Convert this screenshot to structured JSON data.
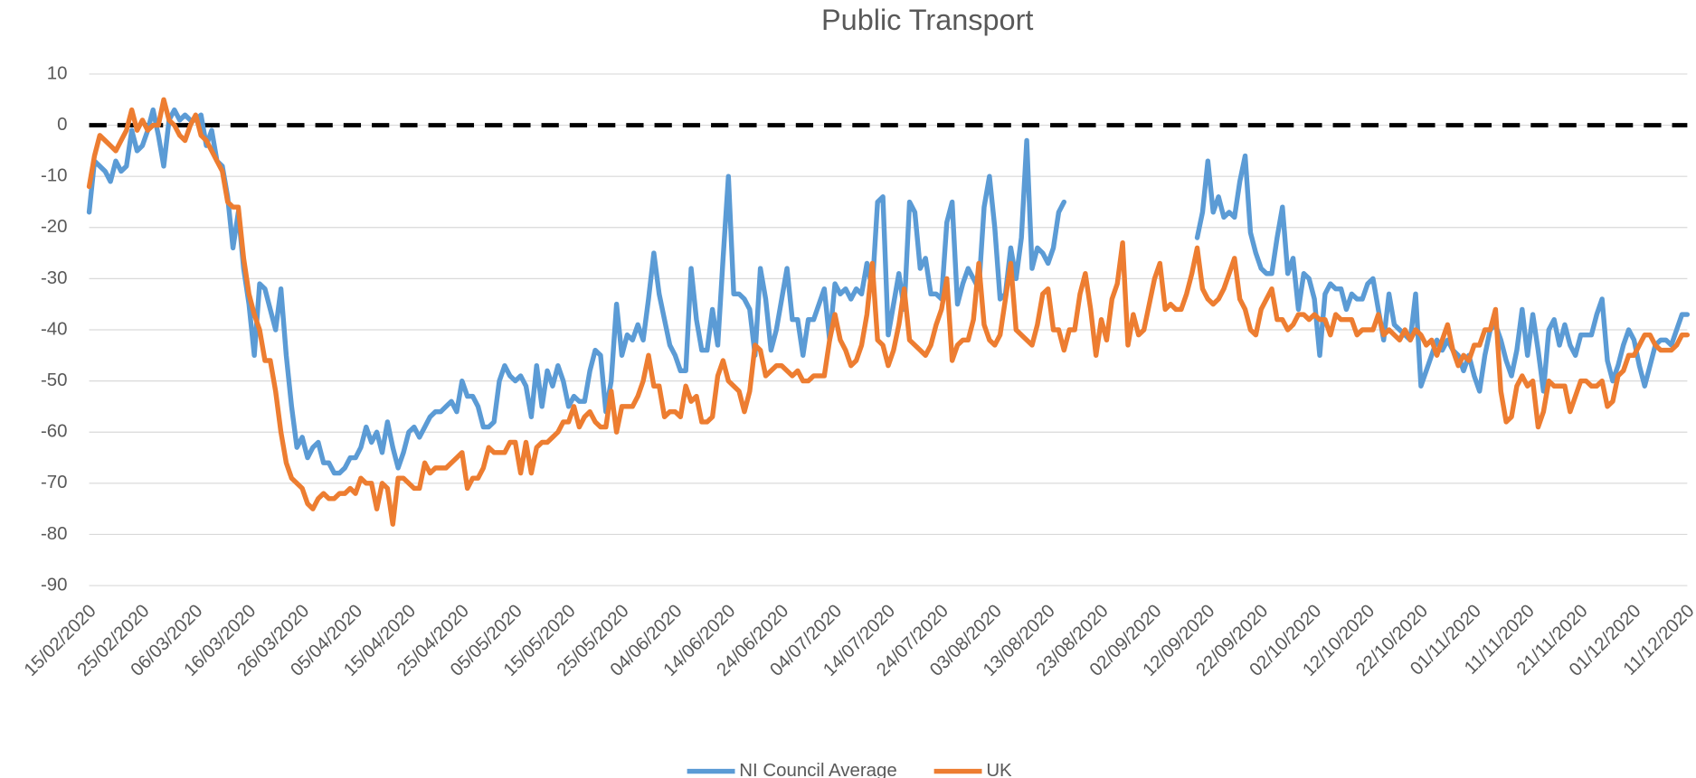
{
  "chart_data": {
    "type": "line",
    "title": "Public Transport",
    "categories": [
      "15/02/2020",
      null,
      null,
      null,
      null,
      null,
      null,
      null,
      null,
      null,
      "25/02/2020",
      null,
      null,
      null,
      null,
      null,
      null,
      null,
      null,
      null,
      "06/03/2020",
      null,
      null,
      null,
      null,
      null,
      null,
      null,
      null,
      null,
      "16/03/2020",
      null,
      null,
      null,
      null,
      null,
      null,
      null,
      null,
      null,
      "26/03/2020",
      null,
      null,
      null,
      null,
      null,
      null,
      null,
      null,
      null,
      "05/04/2020",
      null,
      null,
      null,
      null,
      null,
      null,
      null,
      null,
      null,
      "15/04/2020",
      null,
      null,
      null,
      null,
      null,
      null,
      null,
      null,
      null,
      "25/04/2020",
      null,
      null,
      null,
      null,
      null,
      null,
      null,
      null,
      null,
      "05/05/2020",
      null,
      null,
      null,
      null,
      null,
      null,
      null,
      null,
      null,
      "15/05/2020",
      null,
      null,
      null,
      null,
      null,
      null,
      null,
      null,
      null,
      "25/05/2020",
      null,
      null,
      null,
      null,
      null,
      null,
      null,
      null,
      null,
      "04/06/2020",
      null,
      null,
      null,
      null,
      null,
      null,
      null,
      null,
      null,
      "14/06/2020",
      null,
      null,
      null,
      null,
      null,
      null,
      null,
      null,
      null,
      "24/06/2020",
      null,
      null,
      null,
      null,
      null,
      null,
      null,
      null,
      null,
      "04/07/2020",
      null,
      null,
      null,
      null,
      null,
      null,
      null,
      null,
      null,
      "14/07/2020",
      null,
      null,
      null,
      null,
      null,
      null,
      null,
      null,
      null,
      "24/07/2020",
      null,
      null,
      null,
      null,
      null,
      null,
      null,
      null,
      null,
      "03/08/2020",
      null,
      null,
      null,
      null,
      null,
      null,
      null,
      null,
      null,
      "13/08/2020",
      null,
      null,
      null,
      null,
      null,
      null,
      null,
      null,
      null,
      "23/08/2020",
      null,
      null,
      null,
      null,
      null,
      null,
      null,
      null,
      null,
      "02/09/2020",
      null,
      null,
      null,
      null,
      null,
      null,
      null,
      null,
      null,
      "12/09/2020",
      null,
      null,
      null,
      null,
      null,
      null,
      null,
      null,
      null,
      "22/09/2020",
      null,
      null,
      null,
      null,
      null,
      null,
      null,
      null,
      null,
      "02/10/2020",
      null,
      null,
      null,
      null,
      null,
      null,
      null,
      null,
      null,
      "12/10/2020",
      null,
      null,
      null,
      null,
      null,
      null,
      null,
      null,
      null,
      "22/10/2020",
      null,
      null,
      null,
      null,
      null,
      null,
      null,
      null,
      null,
      "01/11/2020",
      null,
      null,
      null,
      null,
      null,
      null,
      null,
      null,
      null,
      "11/11/2020",
      null,
      null,
      null,
      null,
      null,
      null,
      null,
      null,
      null,
      "21/11/2020",
      null,
      null,
      null,
      null,
      null,
      null,
      null,
      null,
      null,
      "01/12/2020",
      null,
      null,
      null,
      null,
      null,
      null,
      null,
      null,
      null,
      "11/12/2020"
    ],
    "series": [
      {
        "name": "NI Council Average",
        "color": "#5b9bd5",
        "values": [
          -17,
          -7,
          -8,
          -9,
          -11,
          -7,
          -9,
          -8,
          -1,
          -5,
          -4,
          -1,
          3,
          -2,
          -8,
          1,
          3,
          1,
          2,
          1,
          1,
          2,
          -4,
          -1,
          -7,
          -8,
          -14,
          -24,
          -17,
          -28,
          -35,
          -45,
          -31,
          -32,
          -36,
          -40,
          -32,
          -45,
          -55,
          -63,
          -61,
          -65,
          -63,
          -62,
          -66,
          -66,
          -68,
          -68,
          -67,
          -65,
          -65,
          -63,
          -59,
          -62,
          -60,
          -64,
          -58,
          -63,
          -67,
          -64,
          -60,
          -59,
          -61,
          -59,
          -57,
          -56,
          -56,
          -55,
          -54,
          -56,
          -50,
          -53,
          -53,
          -55,
          -59,
          -59,
          -58,
          -50,
          -47,
          -49,
          -50,
          -49,
          -51,
          -57,
          -47,
          -55,
          -48,
          -51,
          -47,
          -50,
          -55,
          -53,
          -54,
          -54,
          -48,
          -44,
          -45,
          -56,
          -50,
          -35,
          -45,
          -41,
          -42,
          -39,
          -42,
          -34,
          -25,
          -33,
          -38,
          -43,
          -45,
          -48,
          -48,
          -28,
          -38,
          -44,
          -44,
          -36,
          -43,
          -26,
          -10,
          -33,
          -33,
          -34,
          -36,
          -45,
          -28,
          -34,
          -44,
          -40,
          -34,
          -28,
          -38,
          -38,
          -45,
          -38,
          -38,
          -35,
          -32,
          -42,
          -31,
          -33,
          -32,
          -34,
          -32,
          -33,
          -27,
          -32,
          -15,
          -14,
          -41,
          -35,
          -29,
          -36,
          -15,
          -17,
          -28,
          -26,
          -33,
          -33,
          -34,
          -19,
          -15,
          -35,
          -31,
          -28,
          -30,
          -32,
          -16,
          -10,
          -20,
          -34,
          -33,
          -24,
          -30,
          -22,
          -3,
          -28,
          -24,
          -25,
          -27,
          -24,
          -17,
          -15,
          null,
          null,
          null,
          null,
          null,
          null,
          null,
          null,
          null,
          null,
          null,
          null,
          null,
          null,
          null,
          null,
          null,
          null,
          null,
          null,
          null,
          null,
          null,
          null,
          -22,
          -17,
          -7,
          -17,
          -14,
          -18,
          -17,
          -18,
          -11,
          -6,
          -21,
          -25,
          -28,
          -29,
          -29,
          -22,
          -16,
          -29,
          -26,
          -36,
          -29,
          -30,
          -34,
          -45,
          -33,
          -31,
          -32,
          -32,
          -36,
          -33,
          -34,
          -34,
          -31,
          -30,
          -36,
          -42,
          -33,
          -39,
          -40,
          -41,
          -42,
          -33,
          -51,
          -48,
          -45,
          -42,
          -44,
          -42,
          -44,
          -45,
          -48,
          -45,
          -49,
          -52,
          -45,
          -40,
          -39,
          -42,
          -46,
          -49,
          -44,
          -36,
          -45,
          -37,
          -44,
          -52,
          -40,
          -38,
          -43,
          -39,
          -43,
          -45,
          -41,
          -41,
          -41,
          -37,
          -34,
          -46,
          -50,
          -47,
          -43,
          -40,
          -42,
          -47,
          -51,
          -47,
          -43,
          -42,
          -42,
          -43,
          -40,
          -37,
          -37
        ]
      },
      {
        "name": "UK",
        "color": "#ed7d31",
        "values": [
          -12,
          -6,
          -2,
          -3,
          -4,
          -5,
          -3,
          -1,
          3,
          -1,
          1,
          -1,
          0,
          0,
          5,
          1,
          0,
          -2,
          -3,
          0,
          2,
          -2,
          -3,
          -5,
          -7,
          -9,
          -15,
          -16,
          -16,
          -26,
          -33,
          -37,
          -40,
          -46,
          -46,
          -52,
          -60,
          -66,
          -69,
          -70,
          -71,
          -74,
          -75,
          -73,
          -72,
          -73,
          -73,
          -72,
          -72,
          -71,
          -72,
          -69,
          -70,
          -70,
          -75,
          -70,
          -71,
          -78,
          -69,
          -69,
          -70,
          -71,
          -71,
          -66,
          -68,
          -67,
          -67,
          -67,
          -66,
          -65,
          -64,
          -71,
          -69,
          -69,
          -67,
          -63,
          -64,
          -64,
          -64,
          -62,
          -62,
          -68,
          -62,
          -68,
          -63,
          -62,
          -62,
          -61,
          -60,
          -58,
          -58,
          -55,
          -59,
          -57,
          -56,
          -58,
          -59,
          -59,
          -52,
          -60,
          -55,
          -55,
          -55,
          -53,
          -50,
          -45,
          -51,
          -51,
          -57,
          -56,
          -56,
          -57,
          -51,
          -54,
          -53,
          -58,
          -58,
          -57,
          -49,
          -46,
          -50,
          -51,
          -52,
          -56,
          -52,
          -43,
          -44,
          -49,
          -48,
          -47,
          -47,
          -48,
          -49,
          -48,
          -50,
          -50,
          -49,
          -49,
          -49,
          -42,
          -37,
          -42,
          -44,
          -47,
          -46,
          -43,
          -37,
          -27,
          -42,
          -43,
          -47,
          -44,
          -39,
          -32,
          -42,
          -43,
          -44,
          -45,
          -43,
          -39,
          -36,
          -30,
          -46,
          -43,
          -42,
          -42,
          -38,
          -27,
          -39,
          -42,
          -43,
          -41,
          -34,
          -27,
          -40,
          -41,
          -42,
          -43,
          -39,
          -33,
          -32,
          -40,
          -40,
          -44,
          -40,
          -40,
          -33,
          -29,
          -36,
          -45,
          -38,
          -42,
          -34,
          -31,
          -23,
          -43,
          -37,
          -41,
          -40,
          -35,
          -30,
          -27,
          -36,
          -35,
          -36,
          -36,
          -33,
          -29,
          -24,
          -32,
          -34,
          -35,
          -34,
          -32,
          -29,
          -26,
          -34,
          -36,
          -40,
          -41,
          -36,
          -34,
          -32,
          -38,
          -38,
          -40,
          -39,
          -37,
          -37,
          -38,
          -37,
          -38,
          -38,
          -41,
          -37,
          -38,
          -38,
          -38,
          -41,
          -40,
          -40,
          -40,
          -37,
          -41,
          -40,
          -41,
          -42,
          -40,
          -42,
          -40,
          -41,
          -43,
          -42,
          -45,
          -42,
          -39,
          -44,
          -47,
          -45,
          -46,
          -43,
          -43,
          -40,
          -40,
          -36,
          -52,
          -58,
          -57,
          -51,
          -49,
          -51,
          -50,
          -59,
          -56,
          -50,
          -51,
          -51,
          -51,
          -56,
          -53,
          -50,
          -50,
          -51,
          -51,
          -50,
          -55,
          -54,
          -49,
          -48,
          -45,
          -45,
          -43,
          -41,
          -41,
          -43,
          -44,
          -44,
          -44,
          -43,
          -41,
          -41
        ]
      }
    ],
    "ylim": [
      -90,
      10
    ],
    "yticks": [
      -90,
      -80,
      -70,
      -60,
      -50,
      -40,
      -30,
      -20,
      -10,
      0,
      10
    ],
    "grid": true,
    "reference_line": {
      "value": 0,
      "color": "#000000",
      "dashed": true
    },
    "legend": "bottom"
  }
}
